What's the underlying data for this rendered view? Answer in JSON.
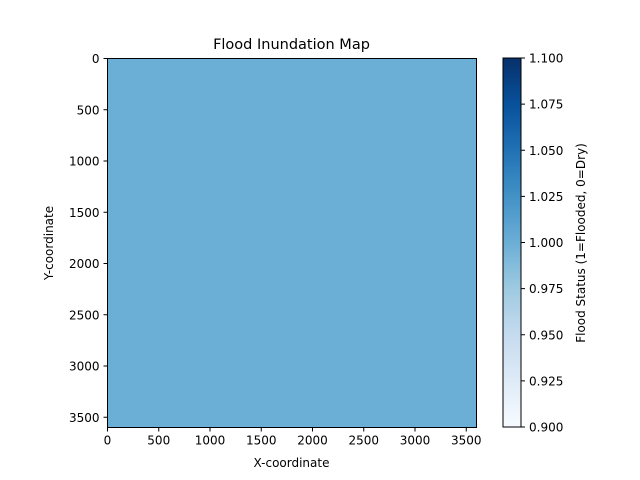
{
  "chart_data": {
    "type": "heatmap",
    "title": "Flood Inundation Map",
    "xlabel": "X-coordinate",
    "ylabel": "Y-coordinate",
    "xlim": [
      0,
      3600
    ],
    "ylim": [
      3600,
      0
    ],
    "x_ticks": [
      0,
      500,
      1000,
      1500,
      2000,
      2500,
      3000,
      3500
    ],
    "y_ticks": [
      0,
      500,
      1000,
      1500,
      2000,
      2500,
      3000,
      3500
    ],
    "values": [
      [
        1
      ]
    ],
    "colormap": "Blues",
    "colorbar": {
      "label": "Flood Status (1=Flooded, 0=Dry)",
      "range": [
        0.9,
        1.1
      ],
      "ticks": [
        "0.900",
        "0.925",
        "0.950",
        "0.975",
        "1.000",
        "1.025",
        "1.050",
        "1.075",
        "1.100"
      ]
    },
    "cell_color": "#6baed6",
    "grid": false
  }
}
